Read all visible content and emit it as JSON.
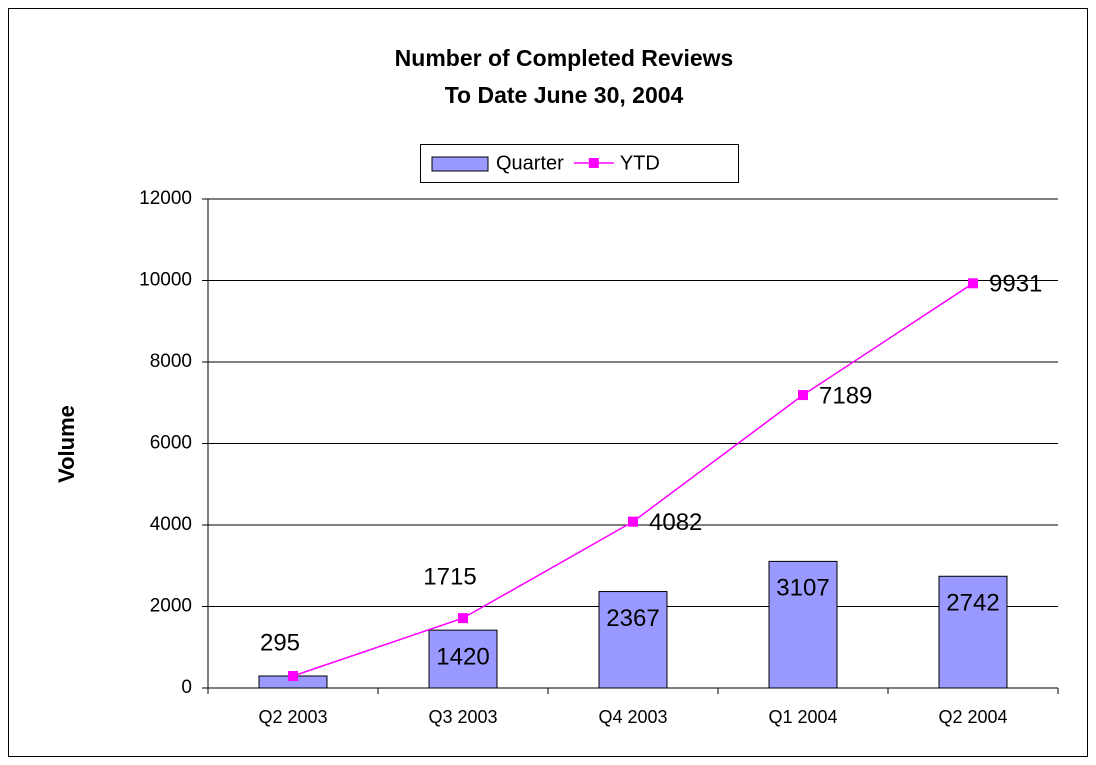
{
  "chart_data": {
    "type": "combo",
    "title": [
      "Number of Completed Reviews",
      "To Date June 30, 2004"
    ],
    "ylabel": "Volume",
    "categories": [
      "Q2 2003",
      "Q3 2003",
      "Q4 2003",
      "Q1 2004",
      "Q2 2004"
    ],
    "series": [
      {
        "name": "Quarter",
        "type": "bar",
        "color": "#9999ff",
        "values": [
          295,
          1420,
          2367,
          3107,
          2742
        ],
        "value_labels": [
          null,
          "1420",
          "2367",
          "3107",
          "2742"
        ]
      },
      {
        "name": "YTD",
        "type": "line",
        "color": "#ff00ff",
        "values": [
          295,
          1715,
          4082,
          7189,
          9931
        ],
        "value_labels": [
          "295",
          "1715",
          "4082",
          "7189",
          "9931"
        ]
      }
    ],
    "ylim": [
      0,
      12000
    ],
    "yticks": [
      0,
      2000,
      4000,
      6000,
      8000,
      10000,
      12000
    ],
    "grid": true,
    "legend": "top"
  }
}
